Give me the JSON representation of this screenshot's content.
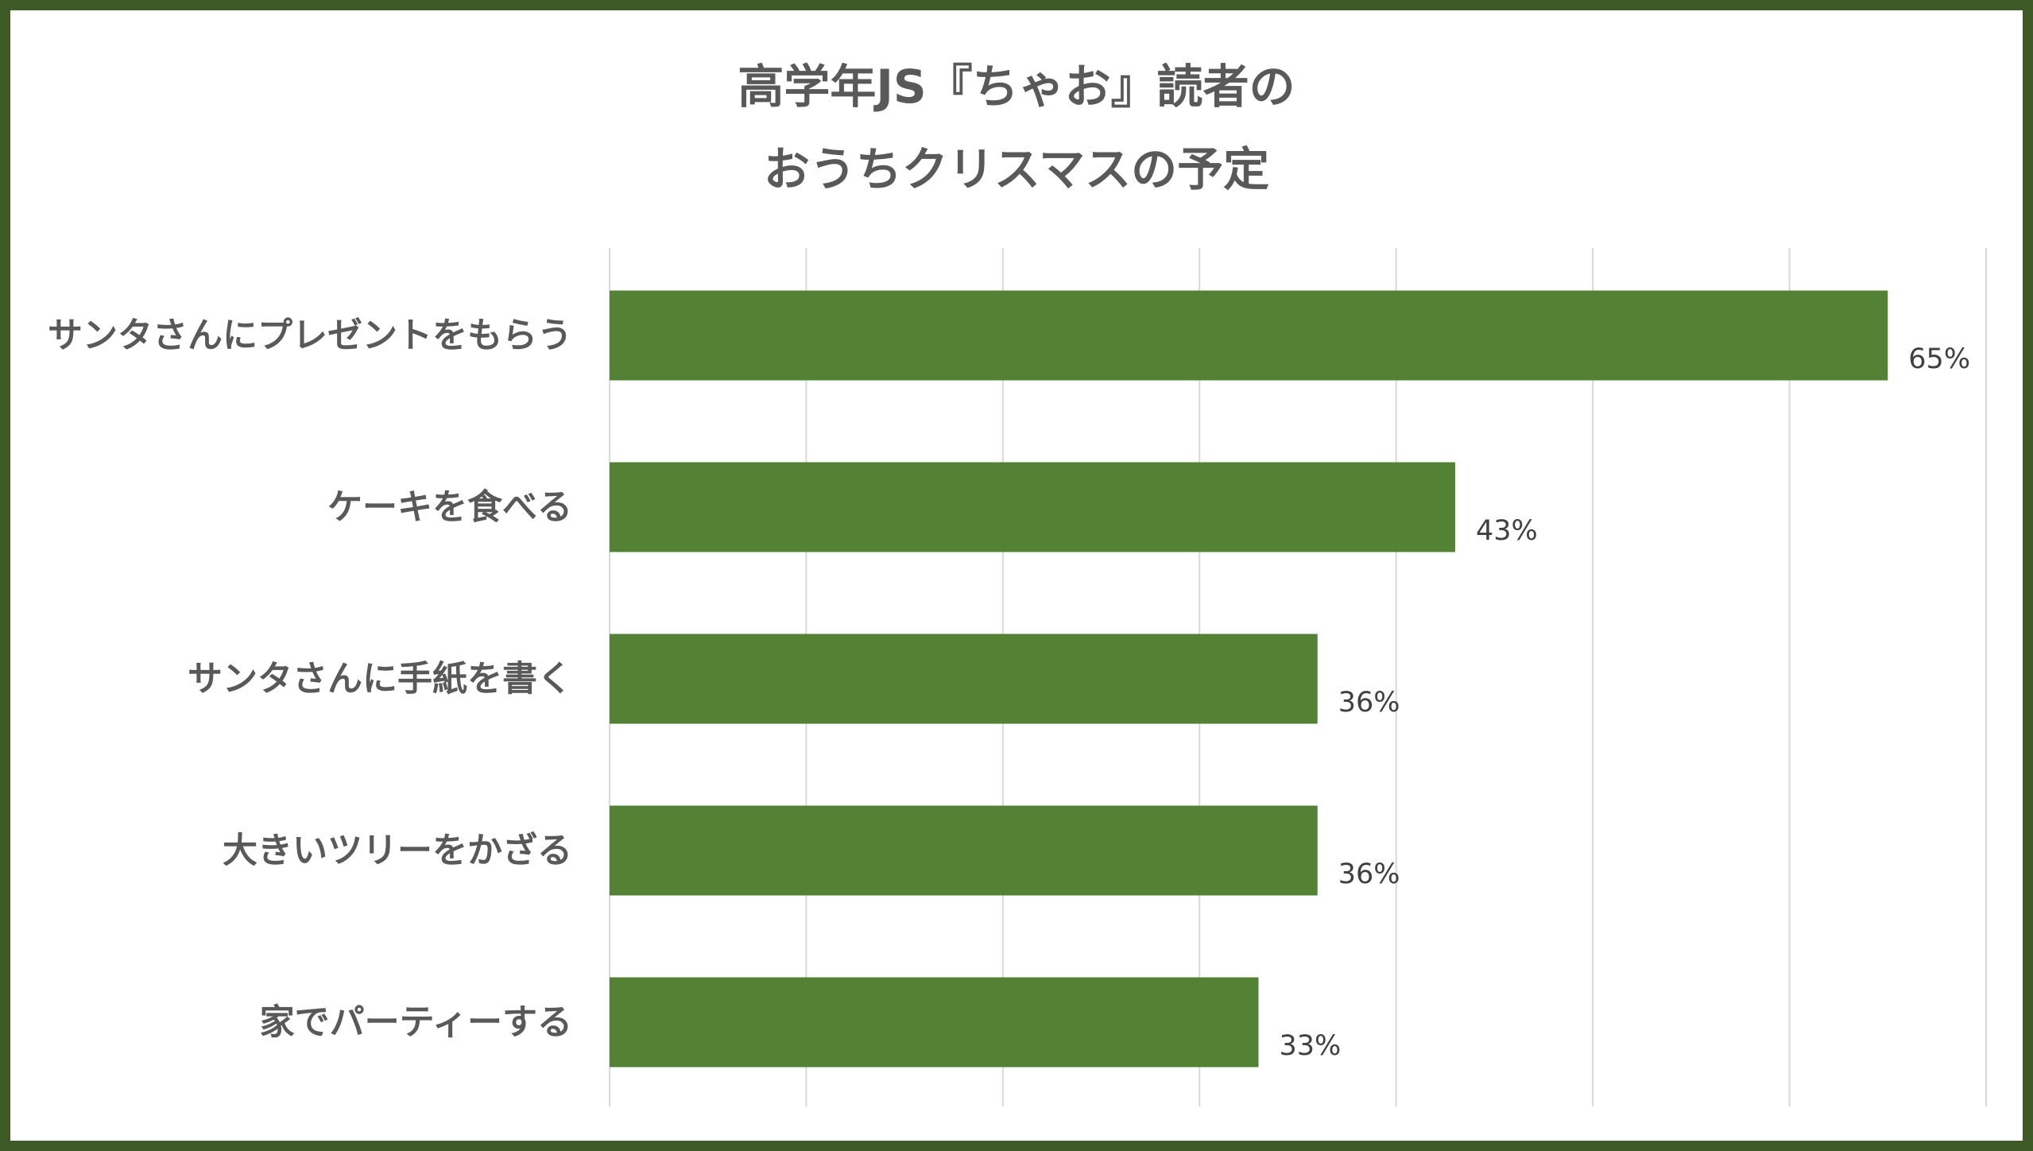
{
  "chart_data": {
    "type": "bar",
    "orientation": "horizontal",
    "title_lines": [
      "高学年JS『ちゃお』読者の",
      "おうちクリスマスの予定"
    ],
    "categories": [
      "サンタさんにプレゼントをもらう",
      "ケーキを食べる",
      "サンタさんに手紙を書く",
      "大きいツリーをかざる",
      "家でパーティーする"
    ],
    "values": [
      65,
      43,
      36,
      36,
      33
    ],
    "value_labels": [
      "65%",
      "43%",
      "36%",
      "36%",
      "33%"
    ],
    "xlim": [
      0,
      70
    ],
    "grid_step": 10,
    "grid": true,
    "legend": "none",
    "colors": {
      "bar": "#548235",
      "frame": "#3d5a27",
      "grid": "#d9d9d9"
    }
  }
}
